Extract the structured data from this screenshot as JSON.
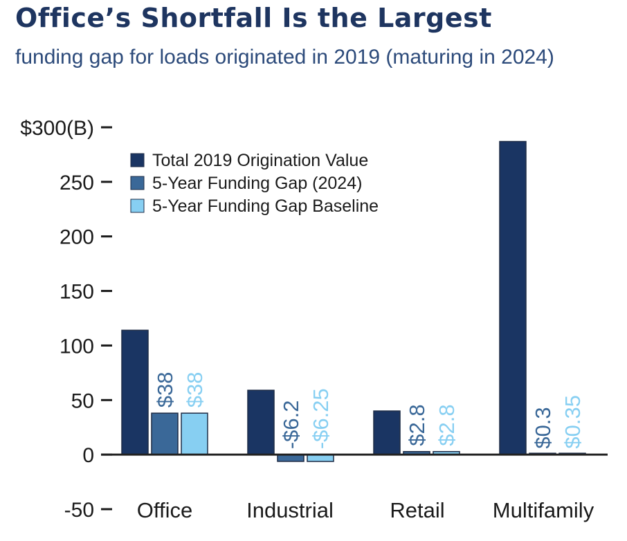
{
  "title": "Office’s Shortfall Is the Largest",
  "subtitle": "funding gap for loads originated in 2019 (maturing in 2024)",
  "colors": {
    "title": "#1e3560",
    "subtitle": "#2c4a7a",
    "series": [
      "#1a3563",
      "#3a6898",
      "#87cff2"
    ],
    "label_series2": "#3a6898",
    "label_series3": "#87cff2"
  },
  "chart_data": {
    "type": "bar",
    "categories": [
      "Office",
      "Industrial",
      "Retail",
      "Multifamily"
    ],
    "series": [
      {
        "name": "Total 2019 Origination Value",
        "values": [
          114,
          59,
          40,
          287
        ],
        "labels": [
          "",
          "",
          "",
          ""
        ]
      },
      {
        "name": "5-Year Funding Gap (2024)",
        "values": [
          38,
          -6.2,
          2.8,
          0.3
        ],
        "labels": [
          "$38",
          "-$6.2",
          "$2.8",
          "$0.3"
        ]
      },
      {
        "name": "5-Year Funding Gap Baseline",
        "values": [
          38,
          -6.25,
          2.8,
          0.35
        ],
        "labels": [
          "$38",
          "-$6.25",
          "$2.8",
          "$0.35"
        ]
      }
    ],
    "yticks": [
      "$300(B)",
      "250",
      "200",
      "150",
      "100",
      "50",
      "0",
      "-50"
    ],
    "ytick_values": [
      300,
      250,
      200,
      150,
      100,
      50,
      0,
      -50
    ],
    "ylim": [
      -50,
      300
    ],
    "legend_position": "top-left",
    "grid": false
  }
}
